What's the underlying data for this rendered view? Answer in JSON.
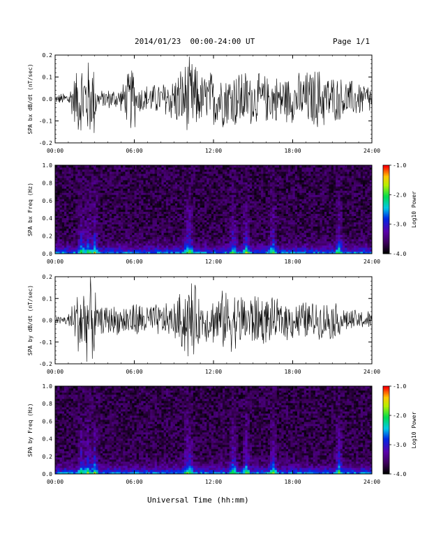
{
  "header": {
    "title": "2014/01/23  00:00-24:00 UT",
    "page": "Page 1/1"
  },
  "xlabel": "Universal Time (hh:mm)",
  "chart_data": [
    {
      "type": "line",
      "title": "",
      "ylabel": "SPA bx dB/dt (nT/sec)",
      "xlabel": "",
      "xlim": [
        "00:00",
        "24:00"
      ],
      "x_ticks": [
        "00:00",
        "06:00",
        "12:00",
        "18:00",
        "24:00"
      ],
      "ylim": [
        -0.2,
        0.2
      ],
      "y_ticks": [
        "-0.2",
        "-0.1",
        "0.0",
        "0.1",
        "0.2"
      ],
      "series": [
        {
          "color": "#000000",
          "x_hours": [
            0,
            1,
            1.9,
            2.1,
            3,
            3.2,
            4,
            5,
            6,
            6.1,
            8,
            9,
            10,
            10.5,
            11,
            12,
            13,
            14,
            15,
            16,
            17,
            18,
            19,
            20,
            21,
            22,
            23,
            24
          ],
          "amplitude": [
            0.02,
            0.04,
            0.2,
            0.2,
            0.2,
            0.04,
            0.05,
            0.06,
            0.2,
            0.07,
            0.08,
            0.12,
            0.2,
            0.2,
            0.12,
            0.15,
            0.14,
            0.16,
            0.13,
            0.12,
            0.12,
            0.12,
            0.14,
            0.16,
            0.12,
            0.1,
            0.09,
            0.08
          ]
        }
      ]
    },
    {
      "type": "heatmap",
      "title": "",
      "ylabel": "SPA bx Freq (Hz)",
      "xlabel": "",
      "xlim": [
        "00:00",
        "24:00"
      ],
      "x_ticks": [
        "00:00",
        "06:00",
        "12:00",
        "18:00",
        "24:00"
      ],
      "ylim": [
        0.0,
        1.0
      ],
      "y_ticks": [
        "0.0",
        "0.2",
        "0.4",
        "0.6",
        "0.8",
        "1.0"
      ],
      "colorbar": {
        "label": "Log10 Power",
        "range": [
          -4.0,
          -1.0
        ],
        "ticks": [
          "-1.0",
          "-2.0",
          "-3.0",
          "-4.0"
        ]
      },
      "bursts_hours": [
        2.0,
        2.5,
        3.0,
        10.0,
        10.2,
        13.5,
        14.5,
        16.5,
        21.5
      ],
      "background_log_power": -3.7
    },
    {
      "type": "line",
      "title": "",
      "ylabel": "SPA by dB/dt (nT/sec)",
      "xlabel": "",
      "xlim": [
        "00:00",
        "24:00"
      ],
      "x_ticks": [
        "00:00",
        "06:00",
        "12:00",
        "18:00",
        "24:00"
      ],
      "ylim": [
        -0.2,
        0.2
      ],
      "y_ticks": [
        "-0.2",
        "-0.1",
        "0.0",
        "0.1",
        "0.2"
      ],
      "series": [
        {
          "color": "#000000",
          "x_hours": [
            0,
            1,
            1.9,
            2.1,
            3,
            3.2,
            4,
            5,
            6,
            6.1,
            8,
            9,
            10,
            10.5,
            11,
            12,
            13,
            14,
            15,
            16,
            17,
            18,
            19,
            20,
            21,
            22,
            23,
            24
          ],
          "amplitude": [
            0.02,
            0.03,
            0.2,
            0.2,
            0.2,
            0.06,
            0.08,
            0.07,
            0.1,
            0.09,
            0.08,
            0.09,
            0.2,
            0.2,
            0.1,
            0.12,
            0.16,
            0.14,
            0.14,
            0.12,
            0.1,
            0.1,
            0.1,
            0.09,
            0.1,
            0.06,
            0.05,
            0.05
          ]
        }
      ]
    },
    {
      "type": "heatmap",
      "title": "",
      "ylabel": "SPA by Freq (Hz)",
      "xlabel": "",
      "xlim": [
        "00:00",
        "24:00"
      ],
      "x_ticks": [
        "00:00",
        "06:00",
        "12:00",
        "18:00",
        "24:00"
      ],
      "ylim": [
        0.0,
        1.0
      ],
      "y_ticks": [
        "0.0",
        "0.2",
        "0.4",
        "0.6",
        "0.8",
        "1.0"
      ],
      "colorbar": {
        "label": "Log10 Power",
        "range": [
          -4.0,
          -1.0
        ],
        "ticks": [
          "-1.0",
          "-2.0",
          "-3.0",
          "-4.0"
        ]
      },
      "bursts_hours": [
        2.0,
        2.5,
        3.0,
        10.0,
        10.2,
        13.5,
        14.5,
        16.5,
        21.5
      ],
      "background_log_power": -3.7
    }
  ]
}
